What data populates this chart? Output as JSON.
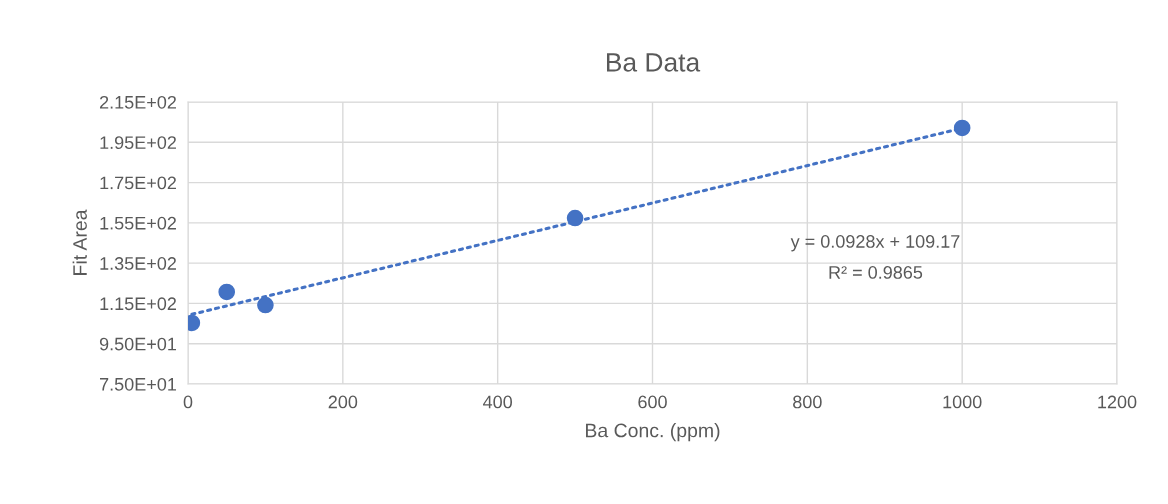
{
  "chart_data": {
    "type": "scatter",
    "title": "Ba Data",
    "xlabel": "Ba Conc. (ppm)",
    "ylabel": "Fit Area",
    "xlim": [
      0,
      1200
    ],
    "xticks": [
      0,
      200,
      400,
      600,
      800,
      1000,
      1200
    ],
    "ylim": [
      75,
      215
    ],
    "yticks": [
      {
        "value": 75,
        "label": "7.50E+01"
      },
      {
        "value": 95,
        "label": "9.50E+01"
      },
      {
        "value": 115,
        "label": "1.15E+02"
      },
      {
        "value": 135,
        "label": "1.35E+02"
      },
      {
        "value": 155,
        "label": "1.55E+02"
      },
      {
        "value": 175,
        "label": "1.75E+02"
      },
      {
        "value": 195,
        "label": "1.95E+02"
      },
      {
        "value": 215,
        "label": "2.15E+02"
      }
    ],
    "grid": true,
    "marker": "circle",
    "series": [
      {
        "color": "#4472c4",
        "x": [
          5,
          50,
          100,
          500,
          1000
        ],
        "values": [
          105.3,
          120.7,
          114.2,
          157.4,
          202.1
        ]
      },
      {
        "type": "line",
        "color": "#4472c4",
        "line_style": "dotted",
        "marker": "none",
        "x": [
          5,
          1000
        ],
        "values": [
          109.6,
          202.0
        ]
      }
    ],
    "annotations": [
      "y = 0.0928x + 109.17",
      "R² = 0.9865"
    ]
  }
}
